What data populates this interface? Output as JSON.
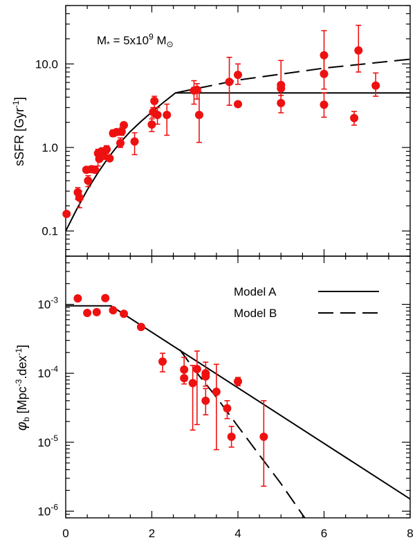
{
  "chart_data": [
    {
      "type": "scatter",
      "panel": "top",
      "annotation": {
        "prefix": "M",
        "sub": "*",
        "eq": " = 5x10",
        "exp": "9",
        "unit": " M",
        "unit_sub": "⊙"
      },
      "ylabel": {
        "text": "sSFR [Gyr",
        "sup": "-1",
        "close": "]"
      },
      "xlim": [
        0,
        8
      ],
      "ylim": [
        0.05,
        50
      ],
      "yscale": "log",
      "ytick_labels": [
        {
          "value": 0.1,
          "label": "0.1"
        },
        {
          "value": 1,
          "label": "1.0"
        },
        {
          "value": 10,
          "label": "10.0"
        }
      ],
      "points": [
        {
          "x": 0.02,
          "y": 0.16
        },
        {
          "x": 0.28,
          "y": 0.29,
          "err": [
            0.24,
            0.33
          ]
        },
        {
          "x": 0.32,
          "y": 0.25,
          "err": [
            0.19,
            0.3
          ]
        },
        {
          "x": 0.48,
          "y": 0.54,
          "err": [
            0.5,
            0.58
          ]
        },
        {
          "x": 0.52,
          "y": 0.4,
          "err": [
            0.34,
            0.46
          ]
        },
        {
          "x": 0.6,
          "y": 0.55,
          "err": [
            0.5,
            0.6
          ]
        },
        {
          "x": 0.68,
          "y": 0.54
        },
        {
          "x": 0.75,
          "y": 0.85,
          "err": [
            0.6,
            0.95
          ]
        },
        {
          "x": 0.78,
          "y": 0.73
        },
        {
          "x": 0.83,
          "y": 0.9
        },
        {
          "x": 0.88,
          "y": 0.8,
          "err": [
            0.72,
            0.95
          ]
        },
        {
          "x": 0.95,
          "y": 0.95,
          "err": [
            0.85,
            1.05
          ]
        },
        {
          "x": 1.02,
          "y": 0.74
        },
        {
          "x": 1.1,
          "y": 1.48,
          "err": [
            1.35,
            1.62
          ]
        },
        {
          "x": 1.18,
          "y": 1.53
        },
        {
          "x": 1.27,
          "y": 1.13,
          "err": [
            1.0,
            1.3
          ]
        },
        {
          "x": 1.3,
          "y": 1.55,
          "err": [
            1.4,
            1.72
          ]
        },
        {
          "x": 1.35,
          "y": 1.85
        },
        {
          "x": 1.6,
          "y": 1.18,
          "err": [
            0.82,
            1.5
          ]
        },
        {
          "x": 2.0,
          "y": 1.88,
          "err": [
            1.55,
            2.2
          ]
        },
        {
          "x": 2.03,
          "y": 2.65,
          "err": [
            2.3,
            3.0
          ]
        },
        {
          "x": 2.06,
          "y": 3.6,
          "err": [
            3.0,
            4.1
          ]
        },
        {
          "x": 2.13,
          "y": 2.45,
          "err": [
            1.9,
            3.0
          ]
        },
        {
          "x": 2.35,
          "y": 2.45,
          "err": [
            1.4,
            3.3
          ]
        },
        {
          "x": 2.98,
          "y": 4.8,
          "err": [
            3.3,
            6.3
          ]
        },
        {
          "x": 3.05,
          "y": 4.9,
          "err": [
            3.8,
            5.8
          ]
        },
        {
          "x": 3.1,
          "y": 2.45,
          "err": [
            1.15,
            4.6
          ]
        },
        {
          "x": 3.8,
          "y": 6.1,
          "err": [
            3.2,
            12.0
          ]
        },
        {
          "x": 4.0,
          "y": 7.4,
          "err": [
            5.7,
            10.0
          ]
        },
        {
          "x": 4.0,
          "y": 3.3
        },
        {
          "x": 5.0,
          "y": 5.6,
          "err": [
            3.3,
            11.0
          ]
        },
        {
          "x": 5.0,
          "y": 5.1
        },
        {
          "x": 5.0,
          "y": 3.4,
          "err": [
            2.6,
            4.2
          ]
        },
        {
          "x": 6.0,
          "y": 12.7,
          "err": [
            7.5,
            25.0
          ]
        },
        {
          "x": 6.0,
          "y": 7.6,
          "err": [
            5.0,
            12.0
          ]
        },
        {
          "x": 6.0,
          "y": 3.25,
          "err": [
            2.3,
            4.5
          ]
        },
        {
          "x": 6.7,
          "y": 2.25,
          "err": [
            1.85,
            2.7
          ]
        },
        {
          "x": 6.8,
          "y": 14.5,
          "err": [
            8.0,
            29.0
          ]
        },
        {
          "x": 7.2,
          "y": 5.5,
          "err": [
            4.1,
            7.8
          ]
        }
      ],
      "model_a": [
        [
          0,
          0.1
        ],
        [
          0.25,
          0.18
        ],
        [
          0.5,
          0.31
        ],
        [
          0.75,
          0.5
        ],
        [
          1.0,
          0.77
        ],
        [
          1.25,
          1.12
        ],
        [
          1.5,
          1.55
        ],
        [
          1.75,
          2.05
        ],
        [
          2.0,
          2.65
        ],
        [
          2.25,
          3.4
        ],
        [
          2.55,
          4.5
        ],
        [
          8,
          4.5
        ]
      ],
      "model_b": [
        [
          2.55,
          4.5
        ],
        [
          4,
          6.4
        ],
        [
          6,
          8.9
        ],
        [
          8,
          11.4
        ]
      ]
    },
    {
      "type": "scatter",
      "panel": "bottom",
      "xlabel": "",
      "ylabel": {
        "symbol": "φ",
        "sub": "b",
        "text": " [Mpc",
        "sup1": "-3",
        "mid": ".dex",
        "sup2": "-1",
        "close": "]"
      },
      "xlim": [
        0,
        8
      ],
      "xticks": [
        0,
        2,
        4,
        6,
        8
      ],
      "ylim": [
        8e-07,
        0.005
      ],
      "yscale": "log",
      "ytick_labels": [
        {
          "value": 1e-06,
          "base": "10",
          "exp": "-6"
        },
        {
          "value": 1e-05,
          "base": "10",
          "exp": "-5"
        },
        {
          "value": 0.0001,
          "base": "10",
          "exp": "-4"
        },
        {
          "value": 0.001,
          "base": "10",
          "exp": "-3"
        }
      ],
      "legend": [
        {
          "label": "Model A",
          "style": "solid"
        },
        {
          "label": "Model B",
          "style": "dashed"
        }
      ],
      "points": [
        {
          "x": 0.28,
          "y": 0.00122
        },
        {
          "x": 0.5,
          "y": 0.00075
        },
        {
          "x": 0.72,
          "y": 0.00077
        },
        {
          "x": 0.92,
          "y": 0.00123
        },
        {
          "x": 1.1,
          "y": 0.00082
        },
        {
          "x": 1.35,
          "y": 0.00073
        },
        {
          "x": 1.75,
          "y": 0.00047
        },
        {
          "x": 2.25,
          "y": 0.000148,
          "err": [
            0.000105,
            0.000195
          ]
        },
        {
          "x": 2.75,
          "y": 0.000113,
          "err": [
            7e-05,
            0.00017
          ]
        },
        {
          "x": 2.75,
          "y": 8.5e-05
        },
        {
          "x": 2.95,
          "y": 7.2e-05,
          "err": [
            1.5e-05,
            0.00013
          ]
        },
        {
          "x": 3.05,
          "y": 0.000115,
          "err": [
            1.8e-05,
            0.00021
          ]
        },
        {
          "x": 3.25,
          "y": 0.0001,
          "err": [
            6.5e-05,
            0.000145
          ]
        },
        {
          "x": 3.25,
          "y": 9e-05
        },
        {
          "x": 3.25,
          "y": 4e-05,
          "err": [
            2.5e-05,
            6e-05
          ]
        },
        {
          "x": 3.5,
          "y": 5.4e-05,
          "err": [
            7.8e-06,
            0.000135
          ]
        },
        {
          "x": 3.75,
          "y": 3.1e-05,
          "err": [
            2.2e-05,
            4e-05
          ]
        },
        {
          "x": 3.85,
          "y": 1.2e-05,
          "err": [
            8.5e-06,
            1.7e-05
          ]
        },
        {
          "x": 4.0,
          "y": 7.6e-05,
          "err": [
            6.6e-05,
            8.7e-05
          ]
        },
        {
          "x": 4.6,
          "y": 1.2e-05,
          "err": [
            2.3e-06,
            4e-05
          ]
        }
      ],
      "model_a": [
        [
          0,
          0.00095
        ],
        [
          1.05,
          0.00095
        ],
        [
          8,
          1.5e-06
        ]
      ],
      "model_b": [
        [
          2.65,
          0.00022
        ],
        [
          3,
          0.00011
        ],
        [
          3.5,
          4.5e-05
        ],
        [
          4,
          1.7e-05
        ],
        [
          4.5,
          6.5e-06
        ],
        [
          5,
          2.5e-06
        ],
        [
          5.55,
          8e-07
        ]
      ]
    }
  ]
}
